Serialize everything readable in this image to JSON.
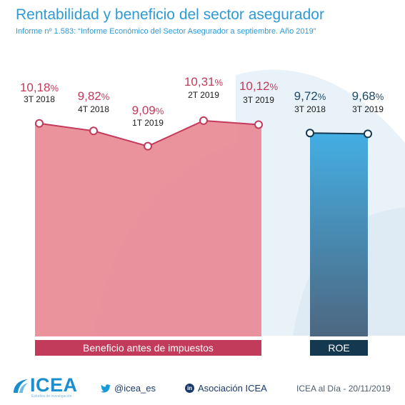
{
  "title": "Rentabilidad y beneficio del sector asegurador",
  "subtitle": "Informe nº 1.583: “Informe Económico del Sector Asegurador a septiembre. Año 2019”",
  "colors": {
    "title": "#2e9ad6",
    "beneficio": "#e8848f",
    "beneficio_line": "#c23b5a",
    "beneficio_label_bg": "#c23b5a",
    "roe_top": "#44aee3",
    "roe_bottom": "#4d6780",
    "roe_label_bg": "#14384f",
    "roe_text": "#1e4a68"
  },
  "chart_data": [
    {
      "type": "area",
      "categories": [
        "3T 2018",
        "4T 2018",
        "1T 2019",
        "2T 2019",
        "3T 2019"
      ],
      "values": [
        10.18,
        9.82,
        9.09,
        10.31,
        10.12
      ],
      "data_labels": [
        "10,18%",
        "9,82%",
        "9,09%",
        "10,31%",
        "10,12%"
      ],
      "category_label": "Beneficio antes de impuestos"
    },
    {
      "type": "bar",
      "categories": [
        "3T 2018",
        "3T 2019"
      ],
      "values": [
        9.72,
        9.68
      ],
      "data_labels": [
        "9,72%",
        "9,68%"
      ],
      "category_label": "ROE"
    }
  ],
  "footer": {
    "logo_text": "ICEA",
    "logo_tagline": "Estudios de investigación",
    "twitter": "@icea_es",
    "linkedin": "Asociación ICEA",
    "linkedin_icon_text": "in",
    "dateline": "ICEA al Día - 20/11/2019"
  }
}
